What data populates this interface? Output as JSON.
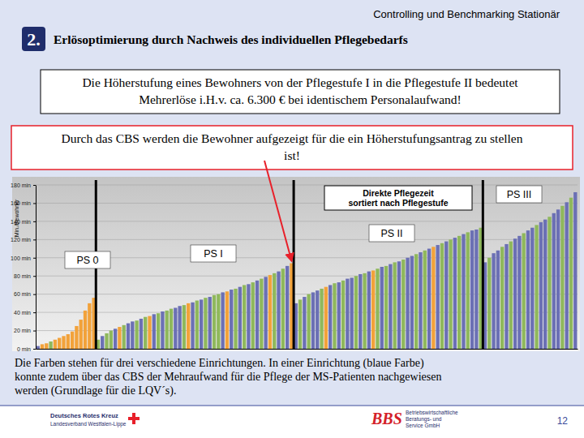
{
  "slide": {
    "header": "Controlling und Benchmarking Stationär",
    "badge": "2.",
    "title": "Erlösoptimierung durch Nachweis des individuellen Pflegebedarfs",
    "box1": [
      "Die Höherstufung eines Bewohners von der Pflegestufe I in die Pflegestufe II bedeutet",
      "Mehrerlöse i.H.v. ca. 6.300 € bei identischem Personalaufwand!"
    ],
    "box2": [
      "Durch das CBS werden die Bewohner aufgezeigt für die ein Höherstufungsantrag zu stellen",
      "ist!"
    ],
    "caption": [
      "Die Farben stehen für drei verschiedene Einrichtungen. In einer Einrichtung (blaue Farbe)",
      "konnte zudem über das CBS der Mehraufwand für die Pflege der MS-Patienten nachgewiesen",
      "werden (Grundlage für die LQV´s)."
    ],
    "footer_left": [
      "Deutsches Rotes Kreuz",
      "Landesverband Westfalen-Lippe"
    ],
    "footer_logo": "BBS",
    "footer_logo_text": [
      "Betriebswirtschaftliche",
      "Beratungs- und",
      "Service GmbH"
    ],
    "page": "12"
  },
  "chart_data": {
    "type": "bar",
    "title": "Direkte Pflegezeit",
    "subtitle": "sortiert nach Pflegestufe",
    "ylabel": "Min./Bewohner",
    "values": [
      3,
      5,
      6,
      8,
      10,
      12,
      14,
      16,
      19,
      25,
      32,
      42,
      50,
      56,
      10,
      14,
      17,
      20,
      22,
      24,
      26,
      28,
      30,
      31,
      33,
      35,
      36,
      38,
      39,
      41,
      42,
      44,
      45,
      47,
      48,
      50,
      51,
      53,
      54,
      56,
      57,
      59,
      60,
      62,
      63,
      65,
      66,
      68,
      70,
      71,
      73,
      75,
      77,
      79,
      81,
      83,
      85,
      88,
      91,
      94,
      50,
      54,
      57,
      60,
      62,
      64,
      66,
      68,
      70,
      72,
      73,
      75,
      77,
      78,
      80,
      82,
      83,
      85,
      86,
      88,
      90,
      91,
      93,
      95,
      96,
      98,
      100,
      102,
      104,
      106,
      108,
      110,
      112,
      114,
      116,
      118,
      120,
      122,
      124,
      126,
      128,
      130,
      131,
      133,
      95,
      100,
      105,
      108,
      112,
      115,
      118,
      121,
      124,
      127,
      130,
      133,
      136,
      139,
      142,
      145,
      149,
      153,
      157,
      161,
      166,
      172
    ],
    "colors": [
      "#6b70b4",
      "#f2a23a",
      "#f2a23a",
      "#8fb85c",
      "#f2a23a",
      "#f2a23a",
      "#f2a23a",
      "#f2a23a",
      "#f2a23a",
      "#f2a23a",
      "#f2a23a",
      "#f2a23a",
      "#f2a23a",
      "#f2a23a",
      "#8fb85c",
      "#6b70b4",
      "#8fb85c",
      "#8fb85c",
      "#6b70b4",
      "#f2a23a",
      "#8fb85c",
      "#6b70b4",
      "#6b70b4",
      "#8fb85c",
      "#6b70b4",
      "#8fb85c",
      "#f2a23a",
      "#6b70b4",
      "#8fb85c",
      "#6b70b4",
      "#8fb85c",
      "#8fb85c",
      "#6b70b4",
      "#6b70b4",
      "#8fb85c",
      "#f2a23a",
      "#6b70b4",
      "#8fb85c",
      "#6b70b4",
      "#8fb85c",
      "#6b70b4",
      "#8fb85c",
      "#8fb85c",
      "#6b70b4",
      "#f2a23a",
      "#6b70b4",
      "#8fb85c",
      "#6b70b4",
      "#8fb85c",
      "#6b70b4",
      "#8fb85c",
      "#6b70b4",
      "#8fb85c",
      "#6b70b4",
      "#f2a23a",
      "#8fb85c",
      "#6b70b4",
      "#8fb85c",
      "#6b70b4",
      "#f2a23a",
      "#6b70b4",
      "#8fb85c",
      "#6b70b4",
      "#8fb85c",
      "#6b70b4",
      "#6b70b4",
      "#8fb85c",
      "#f2a23a",
      "#6b70b4",
      "#8fb85c",
      "#6b70b4",
      "#8fb85c",
      "#6b70b4",
      "#6b70b4",
      "#8fb85c",
      "#6b70b4",
      "#8fb85c",
      "#6b70b4",
      "#f2a23a",
      "#8fb85c",
      "#6b70b4",
      "#8fb85c",
      "#6b70b4",
      "#8fb85c",
      "#6b70b4",
      "#8fb85c",
      "#6b70b4",
      "#6b70b4",
      "#8fb85c",
      "#6b70b4",
      "#8fb85c",
      "#6b70b4",
      "#f2a23a",
      "#6b70b4",
      "#8fb85c",
      "#6b70b4",
      "#8fb85c",
      "#6b70b4",
      "#8fb85c",
      "#6b70b4",
      "#8fb85c",
      "#6b70b4",
      "#6b70b4",
      "#8fb85c",
      "#6b70b4",
      "#8fb85c",
      "#6b70b4",
      "#6b70b4",
      "#8fb85c",
      "#6b70b4",
      "#8fb85c",
      "#6b70b4",
      "#6b70b4",
      "#8fb85c",
      "#6b70b4",
      "#6b70b4",
      "#8fb85c",
      "#6b70b4",
      "#6b70b4",
      "#8fb85c",
      "#6b70b4",
      "#6b70b4",
      "#8fb85c",
      "#6b70b4",
      "#8fb85c",
      "#6b70b4"
    ],
    "groups": [
      {
        "label": "PS 0",
        "count": 14
      },
      {
        "label": "PS I",
        "count": 46
      },
      {
        "label": "PS II",
        "count": 44
      },
      {
        "label": "PS III",
        "count": 22
      }
    ],
    "ylim": [
      0,
      180
    ],
    "yticks": [
      {
        "value": 0,
        "label": "0 min"
      },
      {
        "value": 20,
        "label": "20 min"
      },
      {
        "value": 40,
        "label": "40 min"
      },
      {
        "value": 60,
        "label": "60 min"
      },
      {
        "value": 80,
        "label": "80 min"
      },
      {
        "value": 100,
        "label": "100 min"
      },
      {
        "value": 120,
        "label": "120 min"
      },
      {
        "value": 140,
        "label": "140 min"
      },
      {
        "value": 160,
        "label": "160 min"
      },
      {
        "value": 180,
        "label": "180 min"
      }
    ],
    "grid": true,
    "tick_labels": "y"
  }
}
